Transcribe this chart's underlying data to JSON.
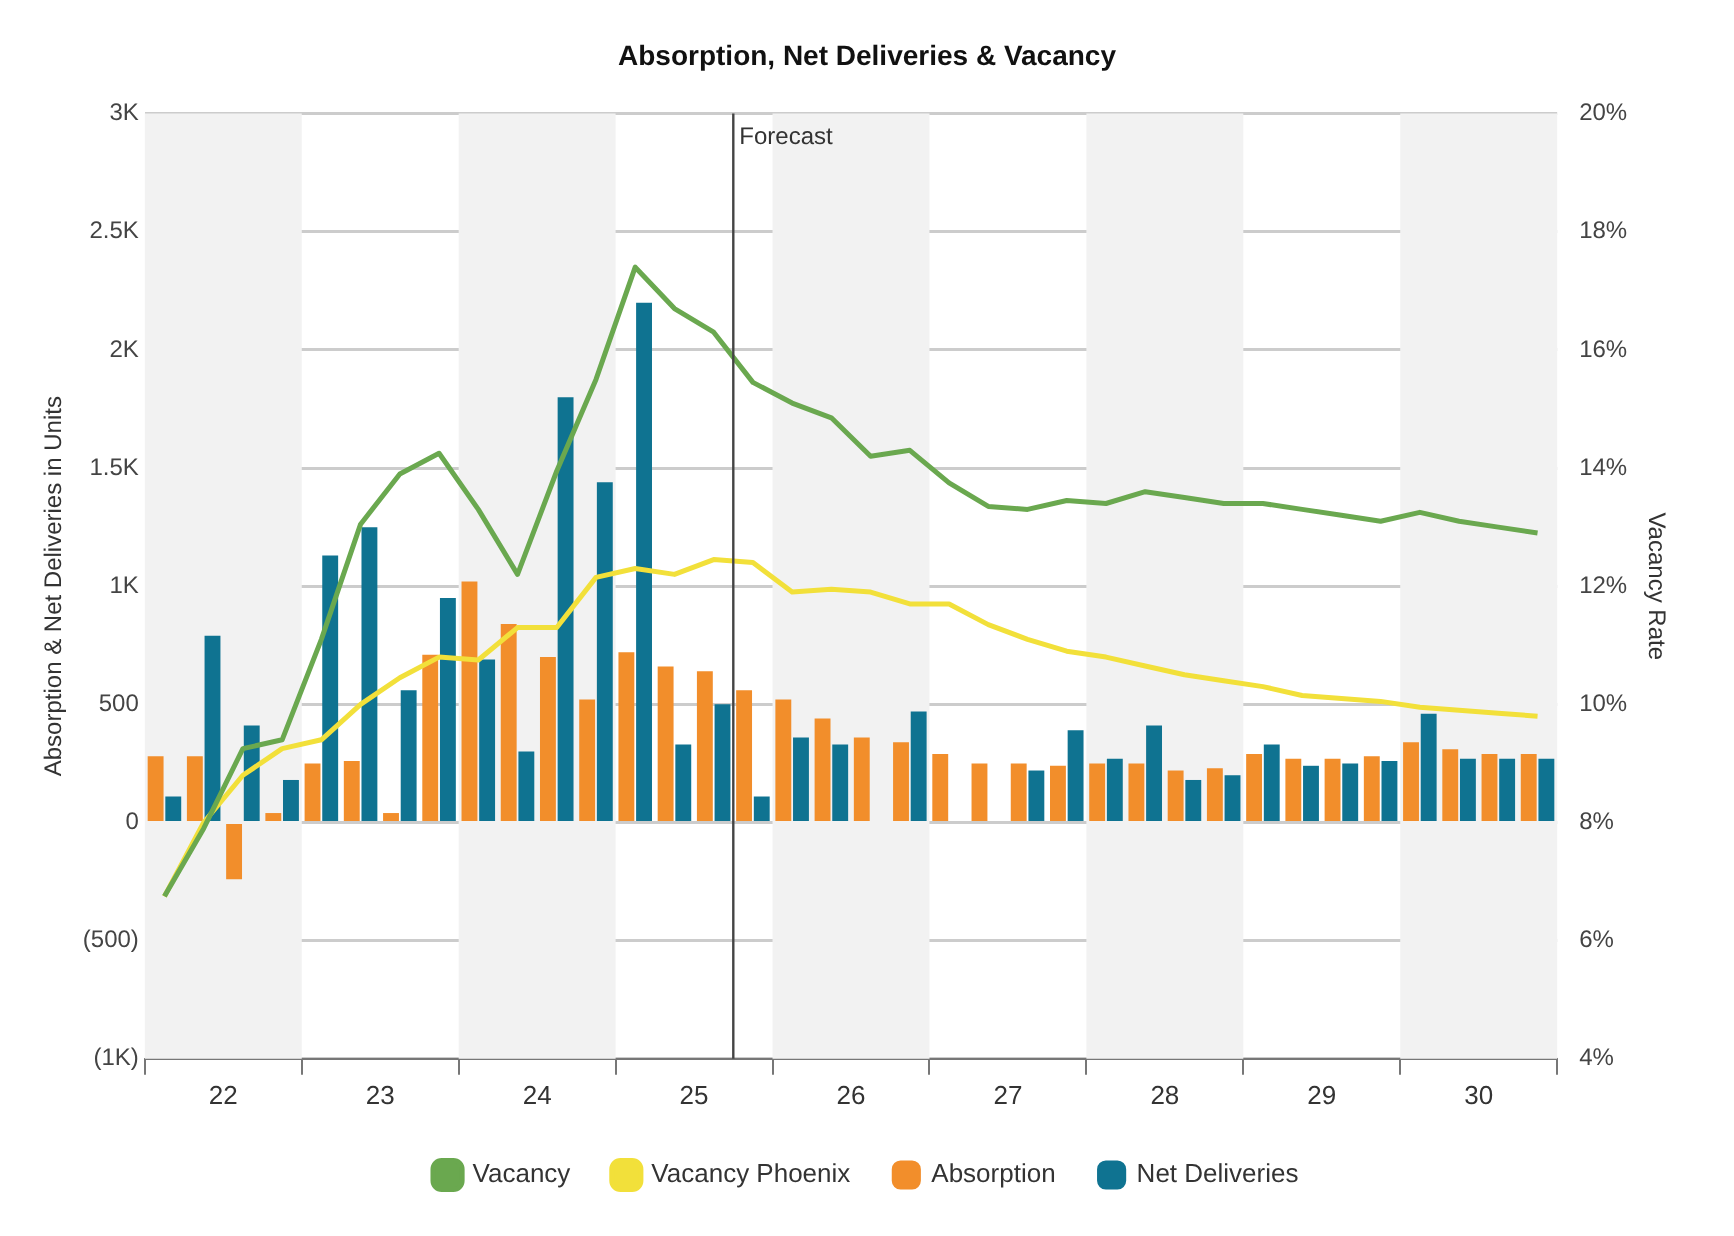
{
  "chart_data": {
    "type": "bar",
    "title": "Absorption, Net Deliveries & Vacancy",
    "ylabel": "Absorption & Net Deliveries in Units",
    "y2label": "Vacancy Rate",
    "x": [
      21.625,
      21.875,
      22.125,
      22.375,
      22.625,
      22.875,
      23.125,
      23.375,
      23.625,
      23.875,
      24.125,
      24.375,
      24.625,
      24.875,
      25.125,
      25.375,
      25.625,
      25.875,
      26.125,
      26.375,
      26.625,
      26.875,
      27.125,
      27.375,
      27.625,
      27.875,
      28.125,
      28.375,
      28.625,
      28.875,
      29.125,
      29.375,
      29.625,
      29.875,
      30.125,
      30.375
    ],
    "xlim": [
      21.5,
      30.5
    ],
    "xticks": [
      22,
      23,
      24,
      25,
      26,
      27,
      28,
      29,
      30
    ],
    "ylim": [
      -1000,
      3000
    ],
    "yticks": [
      {
        "value": -1000,
        "label": "(1K)"
      },
      {
        "value": -500,
        "label": "(500)"
      },
      0,
      500,
      {
        "value": 1000,
        "label": "1K"
      },
      {
        "value": 1500,
        "label": "1.5K"
      },
      {
        "value": 2000,
        "label": "2K"
      },
      {
        "value": 2500,
        "label": "2.5K"
      },
      {
        "value": 3000,
        "label": "3K"
      }
    ],
    "y2lim": [
      4,
      20
    ],
    "y2ticks": [
      {
        "value": 4,
        "label": "4%"
      },
      {
        "value": 6,
        "label": "6%"
      },
      {
        "value": 8,
        "label": "8%"
      },
      {
        "value": 10,
        "label": "10%"
      },
      {
        "value": 12,
        "label": "12%"
      },
      {
        "value": 14,
        "label": "14%"
      },
      {
        "value": 16,
        "label": "16%"
      },
      {
        "value": 18,
        "label": "18%"
      },
      {
        "value": 20,
        "label": "20%"
      }
    ],
    "series": [
      {
        "name": "Absorption",
        "color": "#f28e2b",
        "values": [
          280,
          280,
          -240,
          40,
          250,
          260,
          40,
          710,
          1020,
          840,
          700,
          520,
          720,
          660,
          640,
          560,
          520,
          440,
          360,
          340,
          290,
          250,
          250,
          240,
          250,
          250,
          220,
          230,
          290,
          270,
          270,
          280,
          340,
          310,
          290,
          290
        ]
      },
      {
        "name": "Net Deliveries",
        "color": "#0f7391",
        "values": [
          110,
          790,
          410,
          180,
          1130,
          1250,
          560,
          950,
          690,
          300,
          1800,
          1440,
          2200,
          330,
          500,
          110,
          360,
          330,
          0,
          470,
          0,
          0,
          220,
          390,
          270,
          410,
          180,
          200,
          330,
          240,
          250,
          260,
          460,
          270,
          270,
          270
        ]
      },
      {
        "name": "Vacancy",
        "type": "line",
        "axis": "y2",
        "color": "#6aa84f",
        "values": [
          6.75,
          7.9,
          9.25,
          9.4,
          11.1,
          13.05,
          13.9,
          14.25,
          13.3,
          12.2,
          13.95,
          15.5,
          17.4,
          16.7,
          16.3,
          15.45,
          15.1,
          14.85,
          14.2,
          14.3,
          13.75,
          13.35,
          13.3,
          13.45,
          13.4,
          13.6,
          13.5,
          13.4,
          13.4,
          13.3,
          13.2,
          13.1,
          13.25,
          13.1,
          13.0,
          12.9
        ]
      },
      {
        "name": "Vacancy Phoenix",
        "type": "line",
        "axis": "y2",
        "color": "#f2e03a",
        "values": [
          6.75,
          8.0,
          8.8,
          9.25,
          9.4,
          10.0,
          10.45,
          10.8,
          10.75,
          11.3,
          11.3,
          12.15,
          12.3,
          12.2,
          12.45,
          12.4,
          11.9,
          11.95,
          11.9,
          11.7,
          11.7,
          11.35,
          11.1,
          10.9,
          10.8,
          10.65,
          10.5,
          10.4,
          10.3,
          10.15,
          10.1,
          10.05,
          9.95,
          9.9,
          9.85,
          9.8
        ]
      }
    ],
    "ref_lines": [
      {
        "axis": "x",
        "value": 25.25,
        "label": "Forecast",
        "color": "#444444"
      }
    ],
    "bands": [
      {
        "axis": "x",
        "from": 21.5,
        "to": 22.5,
        "color": "#f2f2f2"
      },
      {
        "axis": "x",
        "from": 23.5,
        "to": 24.5,
        "color": "#f2f2f2"
      },
      {
        "axis": "x",
        "from": 25.5,
        "to": 26.5,
        "color": "#f2f2f2"
      },
      {
        "axis": "x",
        "from": 27.5,
        "to": 28.5,
        "color": "#f2f2f2"
      },
      {
        "axis": "x",
        "from": 29.5,
        "to": 30.5,
        "color": "#f2f2f2"
      }
    ],
    "grid": "y",
    "legend": "bottom",
    "marker": "none",
    "line_style": "solid"
  }
}
